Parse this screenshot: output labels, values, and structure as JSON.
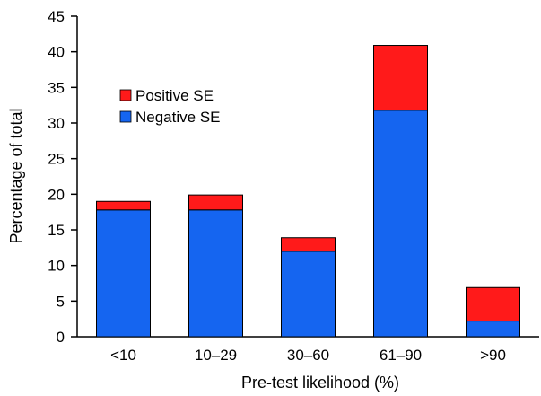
{
  "chart_data": {
    "type": "bar",
    "stacked": true,
    "categories": [
      "<10",
      "10–29",
      "30–60",
      "61–90",
      ">90"
    ],
    "series": [
      {
        "name": "Negative SE",
        "color": "#1565f0",
        "values": [
          17.8,
          17.8,
          12.0,
          31.8,
          2.2
        ]
      },
      {
        "name": "Positive SE",
        "color": "#ff1a1a",
        "values": [
          1.2,
          2.1,
          1.9,
          9.1,
          4.7
        ]
      }
    ],
    "xlabel": "Pre-test likelihood (%)",
    "ylabel": "Percentage of total",
    "ylim": [
      0,
      45
    ],
    "yticks": [
      0,
      5,
      10,
      15,
      20,
      25,
      30,
      35,
      40,
      45
    ],
    "grid": false,
    "legend": {
      "placement": "upper-left",
      "entries": [
        {
          "label": "Positive SE",
          "color": "#ff1a1a"
        },
        {
          "label": "Negative SE",
          "color": "#1565f0"
        }
      ]
    }
  }
}
